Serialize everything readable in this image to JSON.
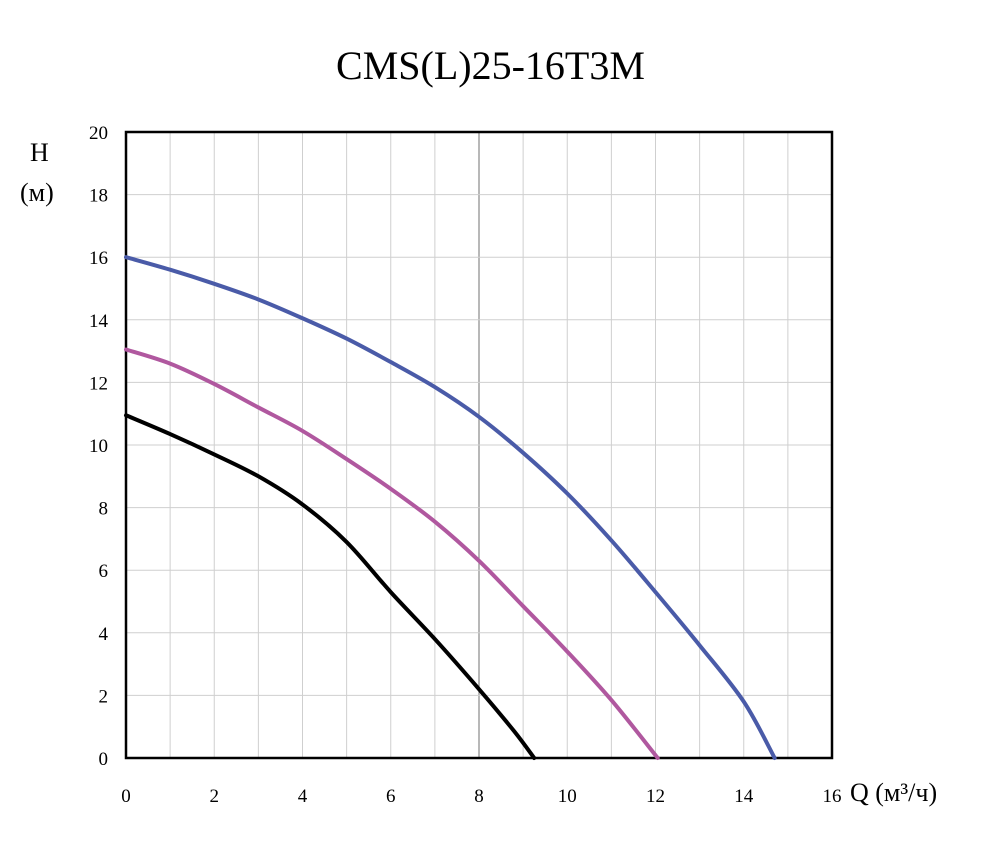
{
  "chart_data": {
    "type": "line",
    "title": "CMS(L)25-16T3M",
    "ylabel": "H",
    "ylabel_unit": "(м)",
    "xlabel": "Q (м³/ч)",
    "xlim": [
      0,
      16
    ],
    "ylim": [
      0,
      20
    ],
    "xticks": [
      "0",
      "2",
      "4",
      "6",
      "8",
      "10",
      "12",
      "14",
      "16"
    ],
    "yticks": [
      "0",
      "2",
      "4",
      "6",
      "8",
      "10",
      "12",
      "14",
      "16",
      "18",
      "20"
    ],
    "grid": true,
    "series": [
      {
        "color": "#4a5ba8",
        "x": [
          0,
          1,
          2,
          3,
          4,
          5,
          6,
          7,
          8,
          9,
          10,
          11,
          12,
          13,
          14,
          14.7
        ],
        "y": [
          16.0,
          15.6,
          15.15,
          14.65,
          14.05,
          13.4,
          12.65,
          11.85,
          10.9,
          9.75,
          8.45,
          6.95,
          5.3,
          3.6,
          1.8,
          0
        ]
      },
      {
        "color": "#b0589f",
        "x": [
          0,
          1,
          2,
          3,
          4,
          5,
          6,
          7,
          8,
          9,
          10,
          11,
          12.05
        ],
        "y": [
          13.05,
          12.6,
          11.95,
          11.2,
          10.45,
          9.55,
          8.6,
          7.55,
          6.3,
          4.85,
          3.4,
          1.85,
          0
        ]
      },
      {
        "color": "#000000",
        "x": [
          0,
          1,
          2,
          3,
          4,
          5,
          6,
          7,
          8,
          8.8,
          9.25
        ],
        "y": [
          10.95,
          10.35,
          9.7,
          9.0,
          8.1,
          6.9,
          5.3,
          3.8,
          2.2,
          0.85,
          0
        ]
      }
    ]
  }
}
